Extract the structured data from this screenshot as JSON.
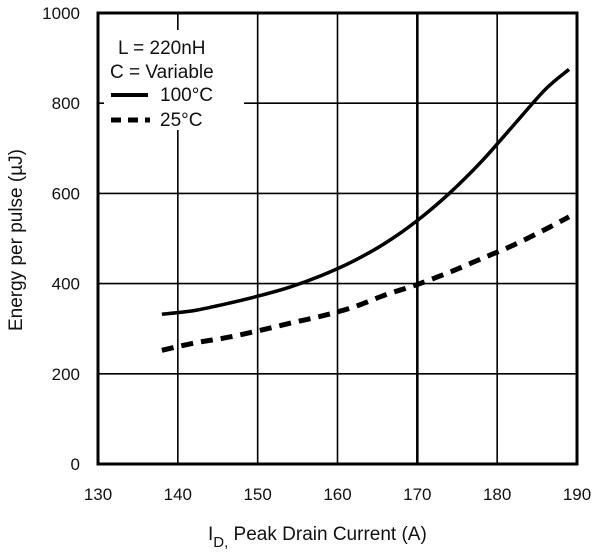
{
  "chart_data": {
    "type": "line",
    "title": "",
    "xlabel_main": "I",
    "xlabel_sub": "D,",
    "xlabel_rest": " Peak Drain Current  (A)",
    "ylabel": "Energy per pulse (µJ)",
    "xlim": [
      130,
      190
    ],
    "ylim": [
      0,
      1000
    ],
    "x_ticks": [
      "130",
      "140",
      "150",
      "160",
      "170",
      "180",
      "190"
    ],
    "y_ticks": [
      "0",
      "200",
      "400",
      "600",
      "800",
      "1000"
    ],
    "x_tick_values": [
      130,
      140,
      150,
      160,
      170,
      180,
      190
    ],
    "y_tick_values": [
      0,
      200,
      400,
      600,
      800,
      1000
    ],
    "grid": true,
    "legend_placement": "top-left",
    "annotations": [
      "L = 220nH",
      "C = Variable"
    ],
    "series": [
      {
        "name": "100°C",
        "style": "solid",
        "x": [
          138,
          142,
          146,
          150,
          154,
          158,
          162,
          166,
          170,
          174,
          178,
          182,
          186,
          189
        ],
        "y": [
          332,
          340,
          355,
          372,
          392,
          418,
          450,
          490,
          540,
          600,
          670,
          750,
          830,
          875
        ]
      },
      {
        "name": "25°C",
        "style": "dashed",
        "x": [
          138,
          142,
          146,
          150,
          154,
          158,
          162,
          166,
          170,
          174,
          178,
          182,
          186,
          189
        ],
        "y": [
          252,
          268,
          280,
          295,
          312,
          328,
          348,
          375,
          398,
          425,
          455,
          485,
          520,
          548
        ]
      }
    ]
  },
  "colors": {
    "line": "#000000",
    "grid": "#000000",
    "background": "#ffffff"
  }
}
